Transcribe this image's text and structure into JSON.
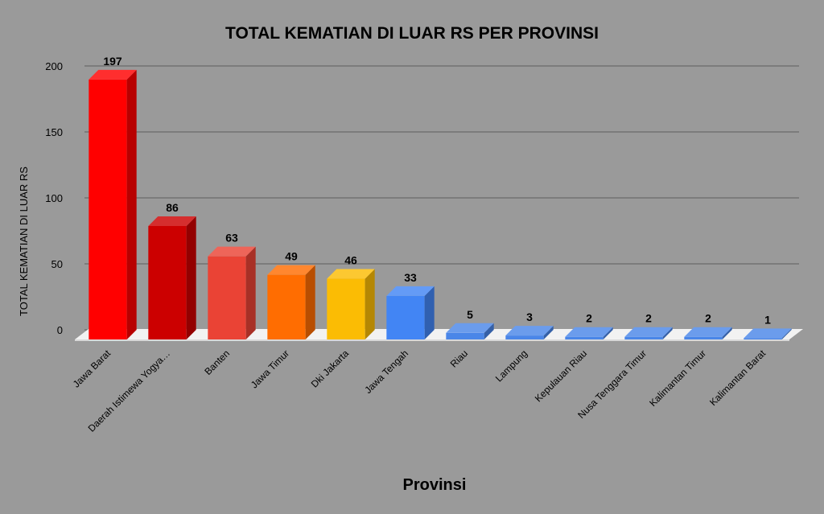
{
  "chart_data": {
    "type": "bar",
    "title": "TOTAL KEMATIAN DI LUAR RS PER PROVINSI",
    "xlabel": "Provinsi",
    "ylabel": "TOTAL KEMATIAN DI LUAR RS",
    "ylim": [
      0,
      200
    ],
    "yticks": [
      "0",
      "50",
      "100",
      "150",
      "200"
    ],
    "grid": true,
    "categories": [
      "Jawa Barat",
      "Daerah Istimewa Yogya…",
      "Banten",
      "Jawa Timur",
      "Dki Jakarta",
      "Jawa Tengah",
      "Riau",
      "Lampung",
      "Kepulauan Riau",
      "Nusa Tenggara Timur",
      "Kalimantan Timur",
      "Kalimantan Barat"
    ],
    "values": [
      197,
      86,
      63,
      49,
      46,
      33,
      5,
      3,
      2,
      2,
      2,
      1
    ],
    "data_labels": [
      "197",
      "86",
      "63",
      "49",
      "46",
      "33",
      "5",
      "3",
      "2",
      "2",
      "2",
      "1"
    ],
    "colors": [
      "#ff0000",
      "#cc0000",
      "#ea4335",
      "#ff6d01",
      "#fbbc04",
      "#4285f4",
      "#4a86e8",
      "#4a86e8",
      "#4a86e8",
      "#4a86e8",
      "#4a86e8",
      "#4a86e8"
    ]
  }
}
